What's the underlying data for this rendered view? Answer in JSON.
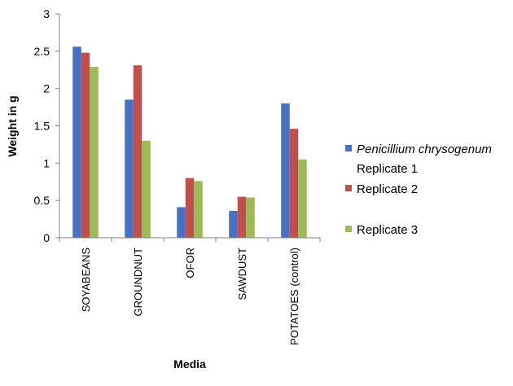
{
  "chart_data": {
    "type": "bar",
    "title": "",
    "xlabel": "Media",
    "ylabel": "Weight in g",
    "ylim": [
      0,
      3
    ],
    "yticks": [
      "0",
      "0.5",
      "1",
      "1.5",
      "2",
      "2.5",
      "3"
    ],
    "grid": false,
    "legend_position": "right",
    "categories": [
      "SOYABEANS",
      "GROUNDNUT",
      "OFOR",
      "SAWDUST",
      "POTATOES (control)"
    ],
    "series": [
      {
        "name_italic": "Penicillium chrysogenum",
        "name_rest": "Replicate 1",
        "color": "#4472C4",
        "values": [
          2.56,
          1.85,
          0.41,
          0.36,
          1.8
        ]
      },
      {
        "name": "Replicate 2",
        "color": "#C0504D",
        "values": [
          2.48,
          2.31,
          0.8,
          0.55,
          1.46
        ]
      },
      {
        "name": "Replicate 3",
        "color": "#9BBB59",
        "values": [
          2.29,
          1.3,
          0.76,
          0.54,
          1.05
        ]
      }
    ]
  }
}
